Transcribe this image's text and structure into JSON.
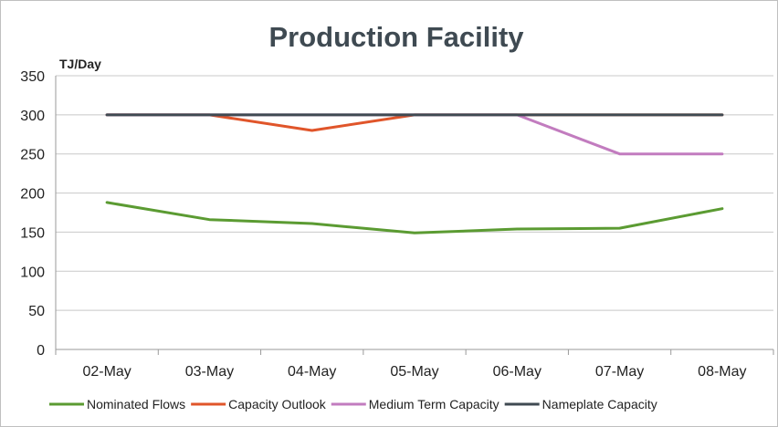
{
  "chart_data": {
    "type": "line",
    "title": "Production Facility",
    "unit_label": "TJ/Day",
    "xlabel": "",
    "ylabel": "",
    "categories": [
      "02-May",
      "03-May",
      "04-May",
      "05-May",
      "06-May",
      "07-May",
      "08-May"
    ],
    "ylim": [
      0,
      350
    ],
    "yticks": [
      0,
      50,
      100,
      150,
      200,
      250,
      300,
      350
    ],
    "grid": true,
    "legend_position": "bottom",
    "series": [
      {
        "name": "Nominated Flows",
        "color": "#5b9b32",
        "values": [
          188,
          166,
          161,
          149,
          154,
          155,
          180
        ]
      },
      {
        "name": "Capacity Outlook",
        "color": "#e0552a",
        "values": [
          300,
          300,
          280,
          300,
          300,
          300,
          300
        ]
      },
      {
        "name": "Medium Term Capacity",
        "color": "#c27cbf",
        "values": [
          300,
          300,
          300,
          300,
          300,
          250,
          250
        ]
      },
      {
        "name": "Nameplate Capacity",
        "color": "#3f4a52",
        "values": [
          300,
          300,
          300,
          300,
          300,
          300,
          300
        ]
      }
    ]
  }
}
